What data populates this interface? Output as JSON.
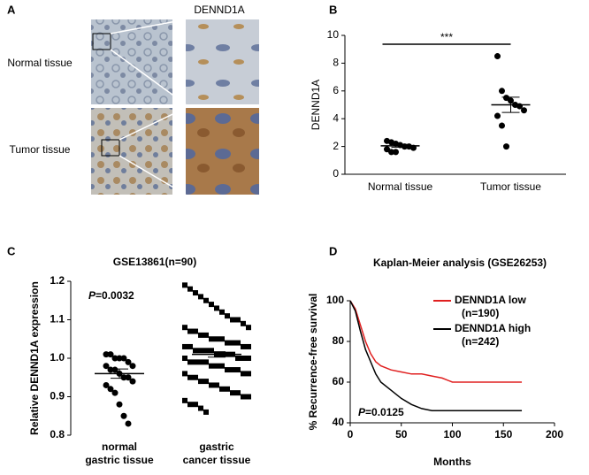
{
  "panel_a": {
    "letter": "A",
    "title": "DENND1A",
    "row_labels": [
      "Normal tissue",
      "Tumor tissue"
    ]
  },
  "chart_data": [
    {
      "type": "dotplot",
      "letter": "B",
      "ylabel": "DENND1A",
      "annotation": "***",
      "ylim": [
        0,
        10
      ],
      "yticks": [
        0,
        2,
        4,
        6,
        8,
        10
      ],
      "series": [
        {
          "name": "Normal tissue",
          "marker": "circle",
          "color": "#000000",
          "mean": 2.05,
          "sem": 0.1,
          "values": [
            2.4,
            2.3,
            2.2,
            2.1,
            2.0,
            2.0,
            1.9,
            1.8,
            1.6,
            1.6
          ]
        },
        {
          "name": "Tumor tissue",
          "marker": "circle",
          "color": "#000000",
          "mean": 5.0,
          "sem": 0.55,
          "values": [
            8.5,
            6.0,
            5.5,
            5.3,
            5.0,
            4.9,
            4.6,
            4.2,
            3.5,
            2.0
          ]
        }
      ]
    },
    {
      "type": "dotplot",
      "letter": "C",
      "title": "GSE13861(n=90)",
      "ylabel": "Relative DENND1A expression",
      "annotation": {
        "italic": "P",
        "text": "=0.0032"
      },
      "ylim": [
        0.8,
        1.2
      ],
      "yticks": [
        0.8,
        0.9,
        {
          "value": 1,
          "label": "1.0"
        },
        1.1,
        1.2
      ],
      "series": [
        {
          "name": [
            "normal",
            "gastric tissue"
          ],
          "marker": "circle",
          "color": "#000000",
          "mean": 0.96,
          "sem": 0.012,
          "values": [
            1.01,
            1.01,
            1.0,
            1.0,
            1.0,
            0.99,
            0.98,
            0.98,
            0.97,
            0.97,
            0.96,
            0.95,
            0.95,
            0.94,
            0.93,
            0.92,
            0.91,
            0.88,
            0.85,
            0.83
          ]
        },
        {
          "name": [
            "gastric",
            "cancer tissue"
          ],
          "marker": "square",
          "color": "#000000",
          "mean": 1.01,
          "sem": 0.007,
          "values": [
            1.19,
            1.18,
            1.17,
            1.16,
            1.15,
            1.14,
            1.13,
            1.12,
            1.11,
            1.1,
            1.1,
            1.09,
            1.08,
            1.08,
            1.07,
            1.07,
            1.06,
            1.06,
            1.05,
            1.05,
            1.05,
            1.04,
            1.04,
            1.04,
            1.03,
            1.03,
            1.03,
            1.03,
            1.02,
            1.02,
            1.02,
            1.02,
            1.01,
            1.01,
            1.01,
            1.01,
            1.0,
            1.0,
            1.0,
            1.0,
            0.99,
            0.99,
            0.99,
            0.99,
            0.98,
            0.98,
            0.98,
            0.97,
            0.97,
            0.97,
            0.96,
            0.96,
            0.96,
            0.95,
            0.95,
            0.94,
            0.94,
            0.93,
            0.93,
            0.92,
            0.92,
            0.91,
            0.91,
            0.9,
            0.9,
            0.89,
            0.88,
            0.88,
            0.87,
            0.86
          ]
        }
      ]
    },
    {
      "type": "line",
      "letter": "D",
      "title": "Kaplan-Meier analysis (GSE26253)",
      "xlabel": "Months",
      "ylabel": "% Recurrence-free survival",
      "annotation": {
        "italic": "P",
        "text": "=0.0125"
      },
      "xlim": [
        0,
        200
      ],
      "xticks": [
        0,
        50,
        100,
        150,
        200
      ],
      "ylim": [
        40,
        100
      ],
      "yticks": [
        40,
        60,
        80,
        100
      ],
      "x": [
        0,
        5,
        10,
        15,
        20,
        25,
        30,
        40,
        50,
        60,
        70,
        80,
        90,
        100,
        120,
        140,
        160,
        168
      ],
      "series": [
        {
          "name": "DENND1A low",
          "count_label": "(n=190)",
          "color": "#e02020",
          "values": [
            100,
            96,
            88,
            80,
            74,
            70,
            68,
            66,
            65,
            64,
            64,
            63,
            62,
            60,
            60,
            60,
            60,
            60
          ]
        },
        {
          "name": "DENND1A high",
          "count_label": "(n=242)",
          "color": "#000000",
          "values": [
            100,
            95,
            85,
            76,
            70,
            64,
            60,
            56,
            52,
            49,
            47,
            46,
            46,
            46,
            46,
            46,
            46,
            46
          ]
        }
      ]
    }
  ]
}
